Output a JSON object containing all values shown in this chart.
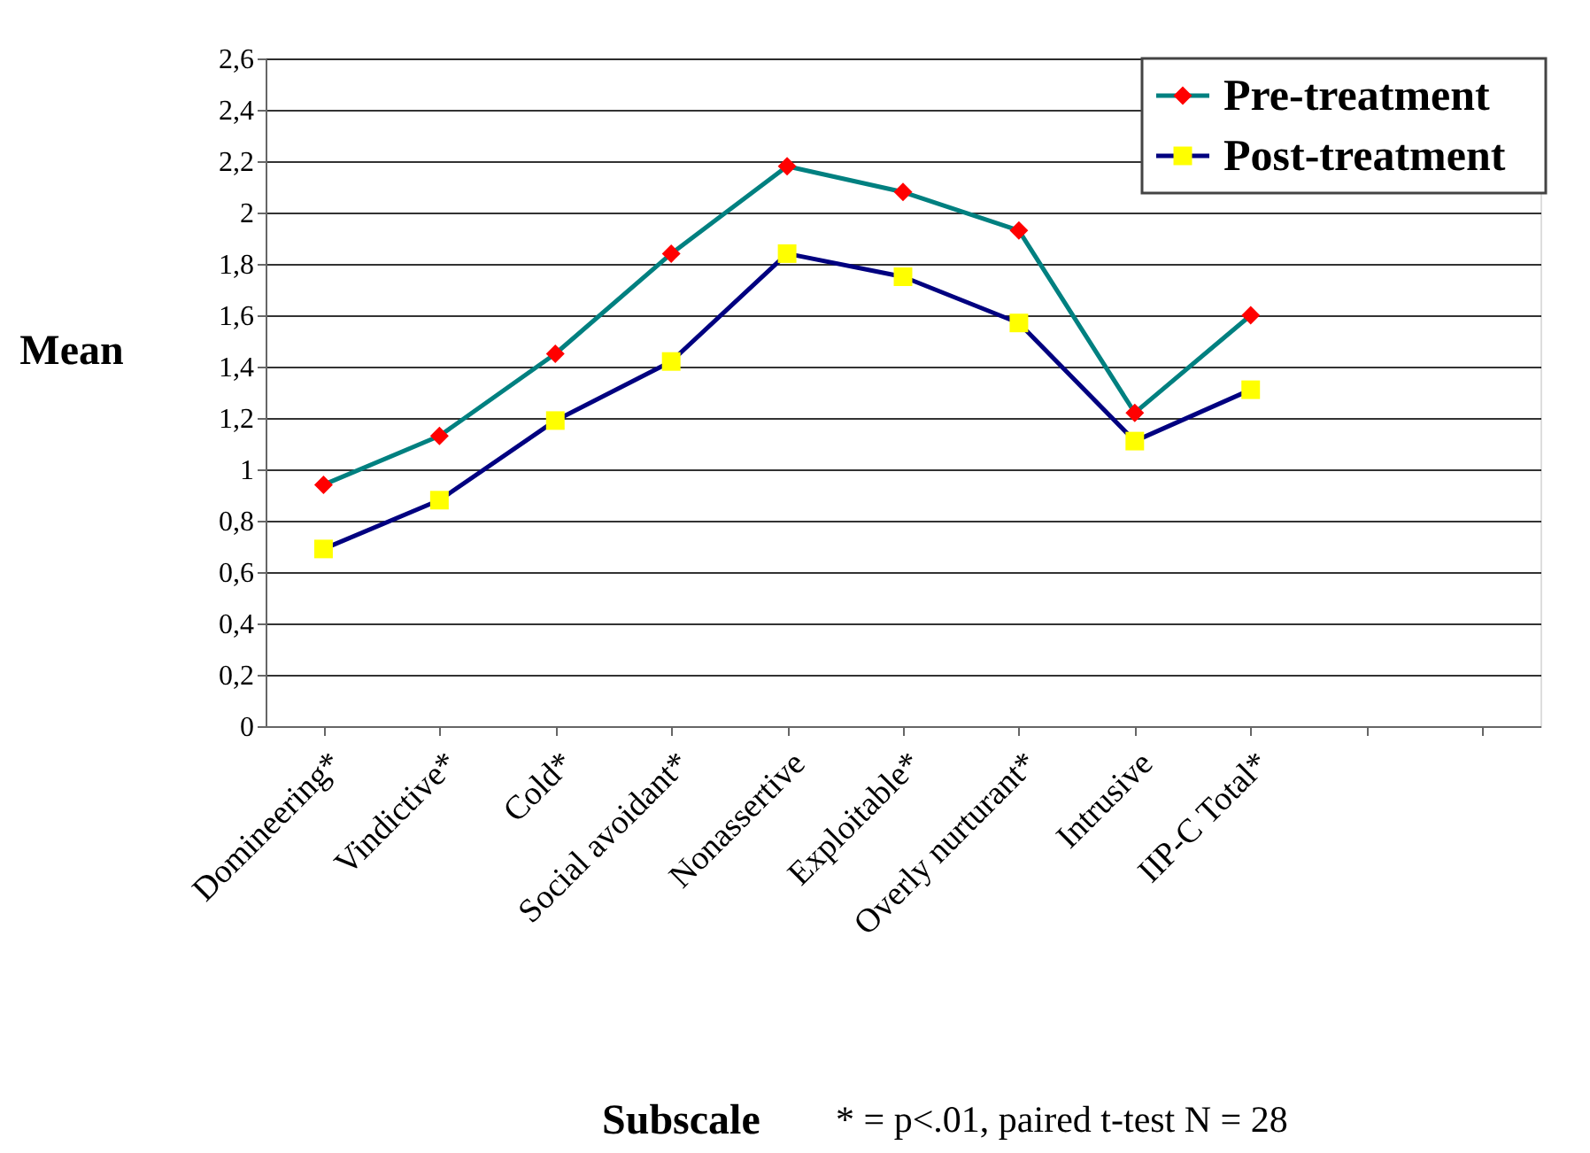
{
  "chart_data": {
    "type": "line",
    "xlabel": "Subscale",
    "ylabel": "Mean",
    "annotations": [
      "* = p<.01, paired t-test   N = 28"
    ],
    "categories": [
      "Domineering*",
      "Vindictive*",
      "Cold*",
      "Social avoidant*",
      "Nonassertive",
      "Exploitable*",
      "Overly nurturant*",
      "Intrusive",
      "IIP-C Total*",
      null,
      null
    ],
    "series": [
      {
        "name": "Pre-treatment",
        "color": "#008080",
        "marker": "diamond",
        "colors": [
          "#ff0000",
          "#ff0000",
          "#ff0000",
          "#ff0000",
          "#ff0000",
          "#ff0000",
          "#ff0000",
          "#ff0000",
          "#ff0000",
          null,
          null
        ],
        "values": [
          0.94,
          1.13,
          1.45,
          1.84,
          2.18,
          2.08,
          1.93,
          1.22,
          1.6,
          null,
          null
        ]
      },
      {
        "name": "Post-treatment",
        "color": "#000080",
        "marker": "square",
        "colors": [
          "#ffff00",
          "#ffff00",
          "#ffff00",
          "#ffff00",
          "#ffff00",
          "#ffff00",
          "#ffff00",
          "#ffff00",
          "#ffff00",
          null,
          null
        ],
        "values": [
          0.69,
          0.88,
          1.19,
          1.42,
          1.84,
          1.75,
          1.57,
          1.11,
          1.31,
          null,
          null
        ]
      }
    ],
    "ylim": [
      0,
      2.6
    ],
    "yticks": [
      0,
      {
        "value": 0.2,
        "label": "0,2"
      },
      {
        "value": 0.4,
        "label": "0,4"
      },
      {
        "value": 0.6,
        "label": "0,6"
      },
      {
        "value": 0.8,
        "label": "0,8"
      },
      1,
      {
        "value": 1.2,
        "label": "1,2"
      },
      {
        "value": 1.4,
        "label": "1,4"
      },
      {
        "value": 1.6,
        "label": "1,6"
      },
      {
        "value": 1.8,
        "label": "1,8"
      },
      2,
      {
        "value": 2.2,
        "label": "2,2"
      },
      {
        "value": 2.4,
        "label": "2,4"
      },
      {
        "value": 2.6,
        "label": "2,6"
      }
    ],
    "grid": "y",
    "legend": "top right",
    "line_style": "solid"
  }
}
